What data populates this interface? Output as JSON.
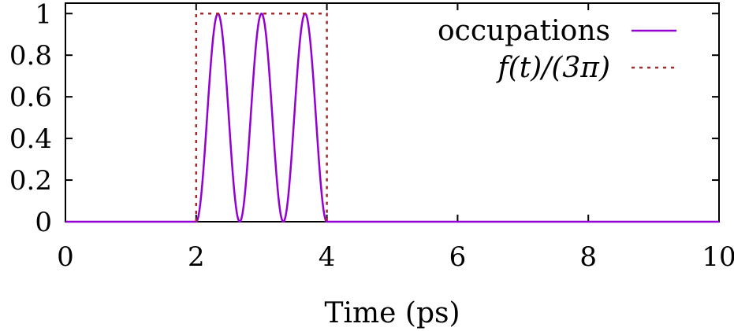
{
  "chart_data": {
    "type": "line",
    "title": "",
    "xlabel": "Time (ps)",
    "ylabel": "",
    "xlim": [
      0,
      10
    ],
    "ylim": [
      0,
      1.05
    ],
    "xticks": [
      0,
      2,
      4,
      6,
      8,
      10
    ],
    "xtick_labels": [
      "0",
      "2",
      "4",
      "6",
      "8",
      "10"
    ],
    "yticks": [
      0,
      0.2,
      0.4,
      0.6,
      0.8,
      1
    ],
    "ytick_labels": [
      "0",
      "0.2",
      "0.4",
      "0.6",
      "0.8",
      "1"
    ],
    "grid": false,
    "legend_position": "top-right",
    "series": [
      {
        "name": "occupations",
        "style": "solid",
        "color": "#9400d3",
        "x": [
          0,
          2.0,
          2.067,
          2.133,
          2.2,
          2.267,
          2.333,
          2.4,
          2.467,
          2.533,
          2.6,
          2.667,
          2.733,
          2.8,
          2.867,
          2.933,
          3.0,
          3.067,
          3.133,
          3.2,
          3.267,
          3.333,
          3.4,
          3.467,
          3.533,
          3.6,
          3.667,
          3.733,
          3.8,
          3.867,
          3.933,
          4.0,
          10
        ],
        "y": [
          0,
          0,
          0.095,
          0.345,
          0.655,
          0.905,
          1.0,
          0.905,
          0.655,
          0.345,
          0.095,
          0,
          0.095,
          0.345,
          0.655,
          0.905,
          1.0,
          0.905,
          0.655,
          0.345,
          0.095,
          0,
          0.095,
          0.345,
          0.655,
          0.905,
          1.0,
          0.905,
          0.655,
          0.345,
          0.095,
          0,
          0
        ]
      },
      {
        "name": "f(t)/(3π)",
        "style": "dotted",
        "color": "#a52a2a",
        "x": [
          2,
          2,
          4,
          4
        ],
        "y": [
          0,
          1,
          1,
          0
        ]
      }
    ]
  }
}
